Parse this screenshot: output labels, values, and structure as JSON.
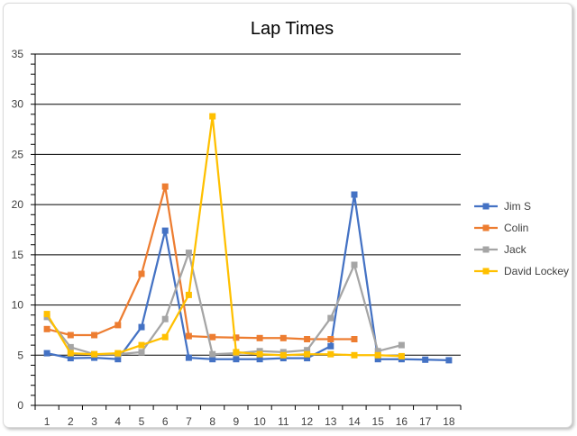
{
  "chart_data": {
    "type": "line",
    "title": "Lap Times",
    "xlabel": "",
    "ylabel": "",
    "categories": [
      "1",
      "2",
      "3",
      "4",
      "5",
      "6",
      "7",
      "8",
      "9",
      "10",
      "11",
      "12",
      "13",
      "14",
      "15",
      "16",
      "17",
      "18"
    ],
    "ylim": [
      0,
      35
    ],
    "yticks": [
      0,
      5,
      10,
      15,
      20,
      25,
      30,
      35
    ],
    "grid": true,
    "legend_position": "right",
    "series": [
      {
        "name": "Jim S",
        "color": "#4472c4",
        "values": [
          5.2,
          4.7,
          4.75,
          4.6,
          7.8,
          17.4,
          4.75,
          4.6,
          4.6,
          4.6,
          4.7,
          4.7,
          5.9,
          21.0,
          4.6,
          4.6,
          4.55,
          4.5
        ]
      },
      {
        "name": "Colin",
        "color": "#ed7d31",
        "values": [
          7.6,
          7.0,
          7.0,
          8.0,
          13.1,
          21.8,
          6.9,
          6.8,
          6.75,
          6.7,
          6.7,
          6.6,
          6.6,
          6.6,
          null,
          null,
          null,
          null
        ]
      },
      {
        "name": "Jack",
        "color": "#a5a5a5",
        "values": [
          8.8,
          5.8,
          5.1,
          5.1,
          5.3,
          8.6,
          15.2,
          5.1,
          5.2,
          5.4,
          5.3,
          5.5,
          8.7,
          14.0,
          5.4,
          6.0,
          null,
          null
        ]
      },
      {
        "name": "David Lockey",
        "color": "#ffc000",
        "values": [
          9.1,
          5.2,
          5.1,
          5.2,
          6.0,
          6.8,
          11.0,
          28.8,
          5.3,
          5.1,
          5.0,
          5.1,
          5.1,
          5.0,
          5.0,
          4.9,
          null,
          null
        ]
      }
    ]
  }
}
